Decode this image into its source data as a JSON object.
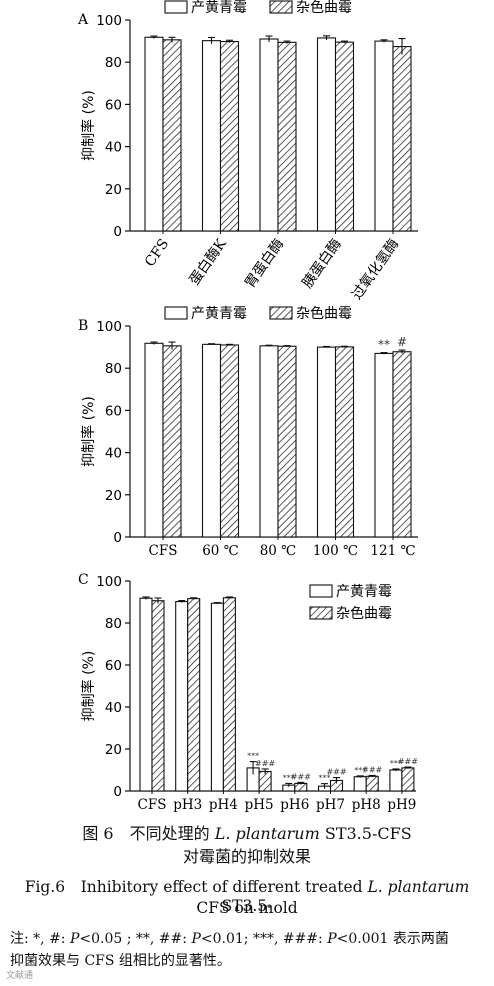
{
  "legend": {
    "s1": "产黄青霉",
    "s2": "杂色曲霉"
  },
  "chart_data": [
    {
      "panel": "A",
      "type": "bar",
      "ylabel": "抑制率 (%)",
      "ylim": [
        0,
        100
      ],
      "yticks": [
        0,
        20,
        40,
        60,
        80,
        100
      ],
      "categories": [
        "CFS",
        "蛋白酶K",
        "胃蛋白酶",
        "胰蛋白酶",
        "过氧化氢酶"
      ],
      "tick_rotation": "rotated",
      "legend_position": "top",
      "series": [
        {
          "name": "产黄青霉",
          "values": [
            91.8,
            90.2,
            91.0,
            91.5,
            90.0
          ],
          "errors": [
            0.6,
            1.5,
            1.4,
            1.0,
            0.6
          ]
        },
        {
          "name": "杂色曲霉",
          "values": [
            90.6,
            89.8,
            89.4,
            89.5,
            87.4
          ],
          "errors": [
            1.2,
            0.6,
            0.6,
            0.5,
            3.8
          ]
        }
      ],
      "sig": []
    },
    {
      "panel": "B",
      "type": "bar",
      "ylabel": "抑制率 (%)",
      "ylim": [
        0,
        100
      ],
      "yticks": [
        0,
        20,
        40,
        60,
        80,
        100
      ],
      "categories": [
        "CFS",
        "60 ℃",
        "80 ℃",
        "100 ℃",
        "121 ℃"
      ],
      "legend_position": "top",
      "series": [
        {
          "name": "产黄青霉",
          "values": [
            91.8,
            91.3,
            90.6,
            90.0,
            87.0
          ],
          "errors": [
            0.6,
            0.3,
            0.3,
            0.3,
            0.4
          ]
        },
        {
          "name": "杂色曲霉",
          "values": [
            90.6,
            91.0,
            90.4,
            90.1,
            87.8
          ],
          "errors": [
            1.8,
            0.3,
            0.3,
            0.3,
            0.8
          ]
        }
      ],
      "sig": [
        [
          "**"
        ],
        [
          "#"
        ]
      ],
      "sig_map": {
        "0": {
          "4": "**"
        },
        "1": {
          "4": "#"
        }
      }
    },
    {
      "panel": "C",
      "type": "bar",
      "ylabel": "抑制率 (%)",
      "ylim": [
        0,
        100
      ],
      "yticks": [
        0,
        20,
        40,
        60,
        80,
        100
      ],
      "categories": [
        "CFS",
        "pH3",
        "pH4",
        "pH5",
        "pH6",
        "pH7",
        "pH8",
        "pH9"
      ],
      "legend_position": "top-right",
      "series": [
        {
          "name": "产黄青霉",
          "values": [
            91.8,
            90.2,
            89.4,
            11.0,
            2.8,
            2.3,
            6.8,
            10.0
          ],
          "errors": [
            0.6,
            0.5,
            0.3,
            3.0,
            0.8,
            1.2,
            0.4,
            0.5
          ]
        },
        {
          "name": "杂色曲霉",
          "values": [
            90.6,
            91.6,
            92.0,
            9.3,
            3.6,
            5.0,
            7.0,
            11.0
          ],
          "errors": [
            1.3,
            0.4,
            0.4,
            1.2,
            0.5,
            1.4,
            0.4,
            0.4
          ]
        }
      ],
      "sig_map": {
        "0": {
          "3": "***",
          "4": "***",
          "5": "***",
          "6": "***",
          "7": "***"
        },
        "1": {
          "3": "###",
          "4": "###",
          "5": "###",
          "6": "###",
          "7": "###"
        }
      }
    }
  ],
  "caption": {
    "cn_prefix": "图 6　不同处理的 ",
    "cn_species": "L. plantarum",
    "cn_suffix": " ST3.5-CFS",
    "cn_line2": "对霉菌的抑制效果",
    "en_prefix": "Fig.6　Inhibitory effect of different treated ",
    "en_species": "L. plantarum",
    "en_suffix": " ST3.5-",
    "en_line2": "CFS on mold"
  },
  "note": {
    "a": "注: *, #: ",
    "b": "P",
    "c": "<0.05 ; **, ##: ",
    "d": "P",
    "e": "<0.01; ***, ###: ",
    "f": "P",
    "g": "<0.001 表示两菌",
    "line2": "抑菌效果与 CFS 组相比的显著性。"
  },
  "watermark": "文献通"
}
